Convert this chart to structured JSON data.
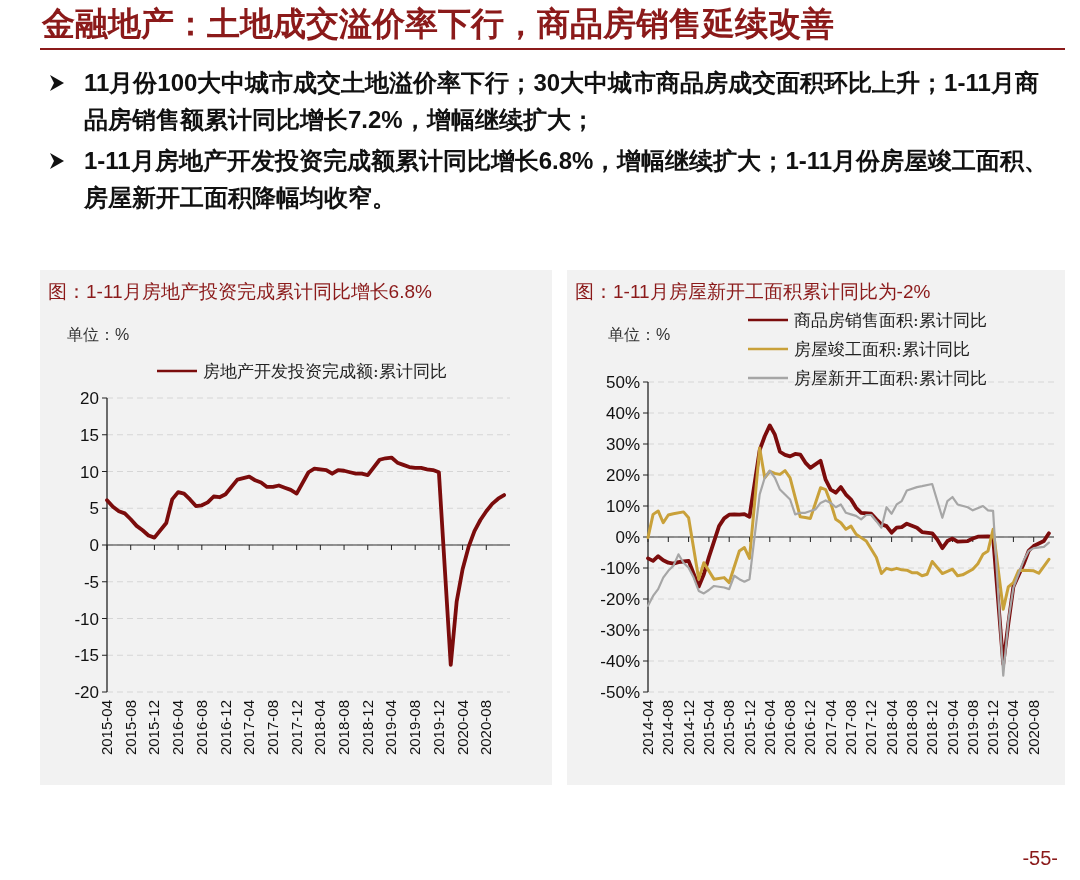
{
  "chart_data": [
    {
      "type": "line",
      "title": "图：1-11月房地产投资完成累计同比增长6.8%",
      "ylabel": "单位：%",
      "annotations": [
        "金融地产：土地成交溢价率下行，商品房销售延续改善",
        "11月份100大中城市成交土地溢价率下行；30大中城市商品房成交面积环比上升；1-11月商品房销售额累计同比增长7.2%，增幅继续扩大；",
        "1-11月房地产开发投资完成额累计同比增长6.8%，增幅继续扩大；1-11月份房屋竣工面积、房屋新开工面积降幅均收窄。"
      ],
      "x": [
        "2015-04",
        "2015-05",
        "2015-06",
        "2015-07",
        "2015-08",
        "2015-09",
        "2015-10",
        "2015-11",
        "2015-12",
        "2016-02",
        "2016-03",
        "2016-04",
        "2016-05",
        "2016-06",
        "2016-07",
        "2016-08",
        "2016-09",
        "2016-10",
        "2016-11",
        "2016-12",
        "2017-02",
        "2017-03",
        "2017-04",
        "2017-05",
        "2017-06",
        "2017-07",
        "2017-08",
        "2017-09",
        "2017-10",
        "2017-11",
        "2017-12",
        "2018-02",
        "2018-03",
        "2018-04",
        "2018-05",
        "2018-06",
        "2018-07",
        "2018-08",
        "2018-09",
        "2018-10",
        "2018-11",
        "2018-12",
        "2019-02",
        "2019-03",
        "2019-04",
        "2019-05",
        "2019-06",
        "2019-07",
        "2019-08",
        "2019-09",
        "2019-10",
        "2019-11",
        "2019-12",
        "2020-02",
        "2020-03",
        "2020-04",
        "2020-05",
        "2020-06",
        "2020-07",
        "2020-08",
        "2020-09",
        "2020-10",
        "2020-11"
      ],
      "series": [
        {
          "name": "房地产开发投资完成额:累计同比",
          "color": "#7b0c0c",
          "values": [
            6.1,
            5.2,
            4.6,
            4.3,
            3.5,
            2.6,
            2.0,
            1.3,
            1.0,
            3.0,
            6.2,
            7.2,
            7.0,
            6.2,
            5.3,
            5.4,
            5.8,
            6.6,
            6.5,
            6.9,
            8.9,
            9.1,
            9.3,
            8.8,
            8.5,
            7.9,
            7.9,
            8.1,
            7.8,
            7.5,
            7.0,
            9.9,
            10.4,
            10.3,
            10.2,
            9.7,
            10.2,
            10.1,
            9.9,
            9.7,
            9.7,
            9.5,
            11.6,
            11.8,
            11.9,
            11.2,
            10.9,
            10.6,
            10.5,
            10.5,
            10.3,
            10.2,
            9.9,
            -16.3,
            -7.7,
            -3.3,
            -0.3,
            1.9,
            3.4,
            4.6,
            5.6,
            6.3,
            6.8
          ]
        }
      ],
      "xlim": [
        "2015-04",
        "2020-12"
      ],
      "xticks": [
        "2015-04",
        "2015-08",
        "2015-12",
        "2016-04",
        "2016-08",
        "2016-12",
        "2017-04",
        "2017-08",
        "2017-12",
        "2018-04",
        "2018-08",
        "2018-12",
        "2019-04",
        "2019-08",
        "2019-12",
        "2020-04",
        "2020-08"
      ],
      "ylim": [
        -20,
        20
      ],
      "yticks": [
        -20,
        -15,
        -10,
        -5,
        0,
        5,
        10,
        15,
        20
      ],
      "grid": "y",
      "legend": "top",
      "line_style": "solid"
    },
    {
      "type": "line",
      "title": "图：1-11月房屋新开工面积累计同比为-2%",
      "ylabel": "单位：%",
      "annotations": [
        "-55-"
      ],
      "series": [
        {
          "name": "商品房销售面积:累计同比",
          "color": "#7b0c0c",
          "x": [
            "2014-04",
            "2014-05",
            "2014-06",
            "2014-07",
            "2014-08",
            "2014-09",
            "2014-10",
            "2014-11",
            "2014-12",
            "2015-02",
            "2015-03",
            "2015-04",
            "2015-05",
            "2015-06",
            "2015-07",
            "2015-08",
            "2015-09",
            "2015-10",
            "2015-11",
            "2015-12",
            "2016-02",
            "2016-03",
            "2016-04",
            "2016-05",
            "2016-06",
            "2016-07",
            "2016-08",
            "2016-09",
            "2016-10",
            "2016-11",
            "2016-12",
            "2017-02",
            "2017-03",
            "2017-04",
            "2017-05",
            "2017-06",
            "2017-07",
            "2017-08",
            "2017-09",
            "2017-10",
            "2017-12",
            "2018-01",
            "2018-02",
            "2018-03",
            "2018-04",
            "2018-05",
            "2018-06",
            "2018-07",
            "2018-09",
            "2018-10",
            "2018-12",
            "2019-01",
            "2019-02",
            "2019-03",
            "2019-04",
            "2019-05",
            "2019-07",
            "2019-08",
            "2019-09",
            "2019-11",
            "2019-12",
            "2020-02",
            "2020-03",
            "2020-04",
            "2020-06",
            "2020-07",
            "2020-08",
            "2020-10",
            "2020-11"
          ],
          "values": [
            -6.9,
            -7.7,
            -6.2,
            -7.5,
            -8.3,
            -8.6,
            -8.1,
            -7.9,
            -7.7,
            -16.0,
            -12.0,
            -6.5,
            -1.5,
            3.5,
            6.0,
            7.2,
            7.3,
            7.2,
            7.4,
            6.5,
            28.0,
            32.5,
            36.0,
            33.0,
            27.5,
            26.5,
            26.0,
            26.8,
            26.6,
            24.0,
            22.3,
            24.6,
            18.5,
            15.3,
            14.3,
            16.1,
            13.7,
            12.1,
            9.4,
            7.8,
            7.5,
            5.7,
            4.1,
            3.5,
            1.4,
            3.0,
            3.2,
            4.3,
            3.0,
            1.6,
            1.2,
            -0.8,
            -3.6,
            -1.3,
            -0.5,
            -1.5,
            -1.3,
            -0.5,
            0.1,
            0.2,
            0.0,
            -41,
            -28,
            -16,
            -8.8,
            -4.5,
            -2.9,
            -1.3,
            1.2
          ]
        },
        {
          "name": "房屋竣工面积:累计同比",
          "color": "#c9a13a",
          "x": [
            "2014-04",
            "2014-05",
            "2014-06",
            "2014-07",
            "2014-08",
            "2014-09",
            "2014-11",
            "2014-12",
            "2015-02",
            "2015-03",
            "2015-05",
            "2015-07",
            "2015-08",
            "2015-10",
            "2015-11",
            "2015-12",
            "2016-02",
            "2016-03",
            "2016-04",
            "2016-05",
            "2016-06",
            "2016-07",
            "2016-08",
            "2016-10",
            "2016-11",
            "2016-12",
            "2017-02",
            "2017-03",
            "2017-04",
            "2017-05",
            "2017-06",
            "2017-07",
            "2017-08",
            "2017-09",
            "2017-10",
            "2017-11",
            "2018-01",
            "2018-02",
            "2018-03",
            "2018-04",
            "2018-05",
            "2018-06",
            "2018-07",
            "2018-08",
            "2018-09",
            "2018-10",
            "2018-11",
            "2018-12",
            "2019-02",
            "2019-04",
            "2019-05",
            "2019-06",
            "2019-08",
            "2019-09",
            "2019-10",
            "2019-11",
            "2019-12",
            "2020-02",
            "2020-03",
            "2020-04",
            "2020-05",
            "2020-06",
            "2020-08",
            "2020-09",
            "2020-11"
          ],
          "values": [
            -0.2,
            7.3,
            8.4,
            4.6,
            7.1,
            7.5,
            8.1,
            6.2,
            -13.6,
            -8.3,
            -13.6,
            -13.1,
            -14.7,
            -4.5,
            -3.4,
            -6.9,
            28.7,
            19.1,
            21.2,
            20.5,
            20.2,
            21.4,
            19.1,
            6.5,
            6.3,
            6.0,
            15.9,
            15.3,
            11.0,
            5.7,
            4.6,
            2.5,
            3.5,
            0.9,
            -0.2,
            -1.3,
            -6.6,
            -11.8,
            -10.1,
            -10.6,
            -10.1,
            -10.6,
            -10.7,
            -11.5,
            -11.5,
            -12.5,
            -12.0,
            -7.9,
            -11.8,
            -10.4,
            -12.5,
            -12.2,
            -10.4,
            -8.6,
            -5.6,
            -4.5,
            2.5,
            -23.3,
            -16.1,
            -14.7,
            -10.9,
            -10.7,
            -10.9,
            -11.7,
            -7.2
          ]
        },
        {
          "name": "房屋新开工面积:累计同比",
          "color": "#a6a6a6",
          "x": [
            "2014-04",
            "2014-05",
            "2014-06",
            "2014-07",
            "2014-08",
            "2014-09",
            "2014-10",
            "2014-11",
            "2014-12",
            "2015-01",
            "2015-02",
            "2015-03",
            "2015-04",
            "2015-05",
            "2015-07",
            "2015-08",
            "2015-09",
            "2015-10",
            "2015-11",
            "2015-12",
            "2016-02",
            "2016-03",
            "2016-04",
            "2016-05",
            "2016-06",
            "2016-07",
            "2016-08",
            "2016-09",
            "2016-10",
            "2016-11",
            "2016-12",
            "2017-01",
            "2017-02",
            "2017-03",
            "2017-04",
            "2017-05",
            "2017-06",
            "2017-07",
            "2017-08",
            "2017-09",
            "2017-10",
            "2017-11",
            "2017-12",
            "2018-01",
            "2018-02",
            "2018-03",
            "2018-04",
            "2018-05",
            "2018-06",
            "2018-07",
            "2018-09",
            "2018-10",
            "2018-12",
            "2019-02",
            "2019-03",
            "2019-04",
            "2019-05",
            "2019-07",
            "2019-08",
            "2019-10",
            "2019-11",
            "2019-12",
            "2020-02",
            "2020-03",
            "2020-04",
            "2020-06",
            "2020-07",
            "2020-08",
            "2020-10",
            "2020-11"
          ],
          "values": [
            -22.2,
            -19.0,
            -16.8,
            -13.1,
            -10.9,
            -9.3,
            -5.6,
            -8.3,
            -9.9,
            -13.1,
            -17.4,
            -18.2,
            -17.1,
            -15.8,
            -16.3,
            -16.8,
            -12.5,
            -13.6,
            -14.4,
            -13.6,
            13.7,
            19.1,
            21.4,
            19.1,
            15.3,
            13.7,
            12.1,
            7.3,
            7.8,
            7.8,
            8.4,
            8.9,
            11.0,
            11.8,
            11.0,
            9.6,
            10.5,
            7.8,
            7.3,
            6.8,
            5.7,
            7.1,
            7.1,
            5.1,
            3.0,
            9.6,
            7.5,
            10.5,
            11.6,
            15.0,
            16.1,
            16.4,
            17.1,
            6.2,
            11.6,
            12.9,
            10.5,
            9.6,
            8.6,
            10.0,
            8.6,
            8.4,
            -44.7,
            -27.0,
            -16.3,
            -7.7,
            -4.5,
            -3.6,
            -3.2,
            -1.8
          ]
        }
      ],
      "xlim": [
        "2014-04",
        "2020-12"
      ],
      "xticks": [
        "2014-04",
        "2014-08",
        "2014-12",
        "2015-04",
        "2015-08",
        "2015-12",
        "2016-04",
        "2016-08",
        "2016-12",
        "2017-04",
        "2017-08",
        "2017-12",
        "2018-04",
        "2018-08",
        "2018-12",
        "2019-04",
        "2019-08",
        "2019-12",
        "2020-04",
        "2020-08"
      ],
      "ylim": [
        -50,
        50
      ],
      "yticks": [
        {
          "value": -50,
          "label": "-50%"
        },
        {
          "value": -40,
          "label": "-40%"
        },
        {
          "value": -30,
          "label": "-30%"
        },
        {
          "value": -20,
          "label": "-20%"
        },
        {
          "value": -10,
          "label": "-10%"
        },
        {
          "value": 0,
          "label": "0%"
        },
        {
          "value": 10,
          "label": "10%"
        },
        {
          "value": 20,
          "label": "20%"
        },
        {
          "value": 30,
          "label": "30%"
        },
        {
          "value": 40,
          "label": "40%"
        },
        {
          "value": 50,
          "label": "50%"
        }
      ],
      "grid": "y",
      "legend": "top",
      "line_style": "solid"
    }
  ]
}
